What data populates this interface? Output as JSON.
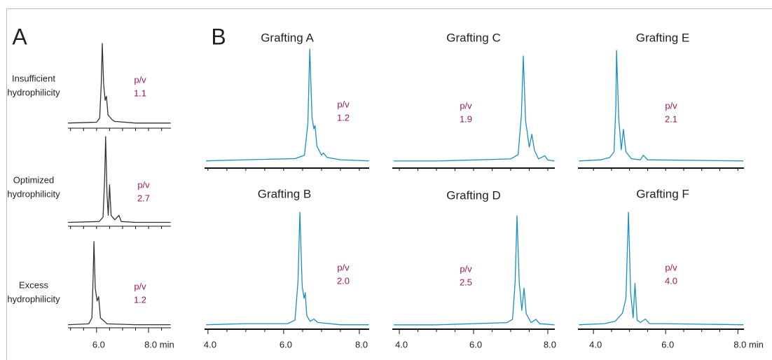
{
  "panel_labels": [
    "A",
    "B"
  ],
  "chart_data": [
    {
      "type": "line",
      "label_lines": [
        "Insufficient",
        "hydrophilicity"
      ],
      "annotation": [
        "p/v",
        "1.1"
      ],
      "color": "#333333",
      "xlim": [
        4.9,
        8.86
      ],
      "ylim": [
        0,
        1
      ],
      "minor_xticks": [
        5,
        5.5,
        6,
        6.5,
        7,
        7.5,
        8,
        8.5
      ],
      "x": [
        4.9,
        6.0,
        6.12,
        6.18,
        6.22,
        6.27,
        6.33,
        6.38,
        6.44,
        6.6,
        6.7,
        7.5,
        8.85
      ],
      "values": [
        0.02,
        0.03,
        0.08,
        0.5,
        1.0,
        0.5,
        0.3,
        0.35,
        0.12,
        0.06,
        0.04,
        0.02,
        0.02
      ]
    },
    {
      "type": "line",
      "label_lines": [
        "Optimized",
        "hydrophilicity"
      ],
      "annotation": [
        "p/v",
        "2.7"
      ],
      "color": "#333333",
      "xlim": [
        4.9,
        8.86
      ],
      "ylim": [
        0,
        1
      ],
      "minor_xticks": [
        5,
        5.5,
        6,
        6.5,
        7,
        7.5,
        8,
        8.5
      ],
      "x": [
        4.9,
        6.1,
        6.25,
        6.31,
        6.35,
        6.4,
        6.45,
        6.5,
        6.56,
        6.7,
        6.86,
        6.95,
        7.5,
        8.85
      ],
      "values": [
        0.02,
        0.03,
        0.08,
        0.5,
        1.0,
        0.35,
        0.1,
        0.45,
        0.1,
        0.05,
        0.1,
        0.03,
        0.02,
        0.02
      ]
    },
    {
      "type": "line",
      "label_lines": [
        "Excess",
        "hydrophilicity"
      ],
      "annotation": [
        "p/v",
        "1.2"
      ],
      "color": "#333333",
      "xlim": [
        4.9,
        8.86
      ],
      "ylim": [
        0,
        1
      ],
      "minor_xticks": [
        5,
        5.5,
        6.5,
        7,
        7.5,
        8.5
      ],
      "xticks": [
        {
          "value": 6,
          "label": "6.0"
        },
        {
          "value": 8,
          "label": "8.0 min"
        }
      ],
      "x": [
        4.9,
        5.7,
        5.82,
        5.87,
        5.9,
        5.95,
        6.02,
        6.08,
        6.15,
        6.3,
        6.4,
        7.5,
        8.85
      ],
      "values": [
        0.02,
        0.03,
        0.1,
        0.6,
        1.0,
        0.45,
        0.3,
        0.35,
        0.1,
        0.06,
        0.03,
        0.02,
        0.02
      ]
    },
    {
      "type": "line",
      "title": "Grafting A",
      "annotation": [
        "p/v",
        "1.2"
      ],
      "color": "#1a8fc4",
      "xlim": [
        3.91,
        8.26
      ],
      "ylim": [
        0,
        1
      ],
      "minor_xticks": [
        4,
        4.5,
        5,
        5.5,
        6,
        6.5,
        7,
        7.5,
        8
      ],
      "x": [
        3.95,
        5,
        6.3,
        6.55,
        6.64,
        6.69,
        6.75,
        6.8,
        6.83,
        6.88,
        7.0,
        7.05,
        7.15,
        7.5,
        8.25
      ],
      "values": [
        0.02,
        0.03,
        0.04,
        0.07,
        0.35,
        1.0,
        0.4,
        0.3,
        0.33,
        0.15,
        0.07,
        0.09,
        0.05,
        0.03,
        0.02
      ]
    },
    {
      "type": "line",
      "title": "Grafting C",
      "annotation": [
        "p/v",
        "1.9"
      ],
      "color": "#1a8fc4",
      "xlim": [
        3.81,
        8.19
      ],
      "ylim": [
        0,
        1
      ],
      "minor_xticks": [
        4,
        4.5,
        5,
        5.5,
        6,
        6.5,
        7,
        7.5,
        8
      ],
      "x": [
        3.85,
        5,
        7.0,
        7.2,
        7.29,
        7.34,
        7.4,
        7.5,
        7.57,
        7.64,
        7.75,
        7.92,
        8.0,
        8.18
      ],
      "values": [
        0.02,
        0.02,
        0.04,
        0.08,
        0.45,
        1.0,
        0.4,
        0.15,
        0.27,
        0.12,
        0.04,
        0.07,
        0.03,
        0.02
      ]
    },
    {
      "type": "line",
      "title": "Grafting E",
      "annotation": [
        "p/v",
        "2.1"
      ],
      "color": "#1a8fc4",
      "xlim": [
        3.57,
        8.17
      ],
      "ylim": [
        0,
        1
      ],
      "minor_xticks": [
        4,
        4.5,
        5,
        5.5,
        6,
        6.5,
        7,
        7.5,
        8
      ],
      "x": [
        3.6,
        4.2,
        4.45,
        4.57,
        4.62,
        4.64,
        4.7,
        4.77,
        4.83,
        4.9,
        5.05,
        5.3,
        5.38,
        5.5,
        8.15
      ],
      "values": [
        0.02,
        0.03,
        0.05,
        0.1,
        0.5,
        1.0,
        0.4,
        0.12,
        0.3,
        0.1,
        0.04,
        0.03,
        0.07,
        0.03,
        0.02
      ]
    },
    {
      "type": "line",
      "title": "Grafting B",
      "annotation": [
        "p/v",
        "2.0"
      ],
      "color": "#1a8fc4",
      "xlim": [
        3.91,
        8.26
      ],
      "ylim": [
        0,
        1
      ],
      "minor_xticks": [
        4.5,
        5,
        5.5,
        6.5,
        7,
        7.5
      ],
      "xticks": [
        {
          "value": 4,
          "label": "4.0"
        },
        {
          "value": 6,
          "label": "6.0"
        },
        {
          "value": 8,
          "label": "8.0"
        }
      ],
      "x": [
        3.95,
        5,
        6.1,
        6.3,
        6.38,
        6.43,
        6.49,
        6.54,
        6.57,
        6.61,
        6.7,
        6.8,
        6.9,
        7.5,
        8.25
      ],
      "values": [
        0.02,
        0.03,
        0.03,
        0.06,
        0.4,
        1.0,
        0.35,
        0.25,
        0.3,
        0.1,
        0.05,
        0.07,
        0.04,
        0.02,
        0.02
      ]
    },
    {
      "type": "line",
      "title": "Grafting D",
      "annotation": [
        "p/v",
        "2.5"
      ],
      "color": "#1a8fc4",
      "xlim": [
        3.81,
        8.19
      ],
      "ylim": [
        0,
        1
      ],
      "minor_xticks": [
        4.5,
        5,
        5.5,
        6.5,
        7,
        7.5
      ],
      "xticks": [
        {
          "value": 4,
          "label": "4.0"
        },
        {
          "value": 6,
          "label": "6.0"
        },
        {
          "value": 8,
          "label": "8.0"
        }
      ],
      "x": [
        3.85,
        5,
        6.9,
        7.05,
        7.12,
        7.17,
        7.23,
        7.3,
        7.36,
        7.42,
        7.55,
        7.68,
        7.78,
        8.18
      ],
      "values": [
        0.02,
        0.02,
        0.04,
        0.07,
        0.4,
        1.0,
        0.4,
        0.15,
        0.35,
        0.12,
        0.04,
        0.07,
        0.03,
        0.02
      ]
    },
    {
      "type": "line",
      "title": "Grafting F",
      "annotation": [
        "p/v",
        "4.0"
      ],
      "color": "#1a8fc4",
      "xlim": [
        3.57,
        8.17
      ],
      "ylim": [
        0,
        1
      ],
      "minor_xticks": [
        4.5,
        5,
        5.5,
        6.5,
        7,
        7.5
      ],
      "xticks": [
        {
          "value": 4,
          "label": "4.0"
        },
        {
          "value": 6,
          "label": "6.0"
        },
        {
          "value": 8,
          "label": "8.0 min"
        }
      ],
      "x": [
        3.6,
        4.3,
        4.6,
        4.8,
        4.9,
        4.97,
        5.03,
        5.1,
        5.15,
        5.21,
        5.3,
        5.44,
        5.55,
        5.9,
        8.15
      ],
      "values": [
        0.02,
        0.03,
        0.05,
        0.12,
        0.25,
        1.0,
        0.3,
        0.08,
        0.38,
        0.06,
        0.04,
        0.07,
        0.03,
        0.03,
        0.02
      ]
    }
  ]
}
